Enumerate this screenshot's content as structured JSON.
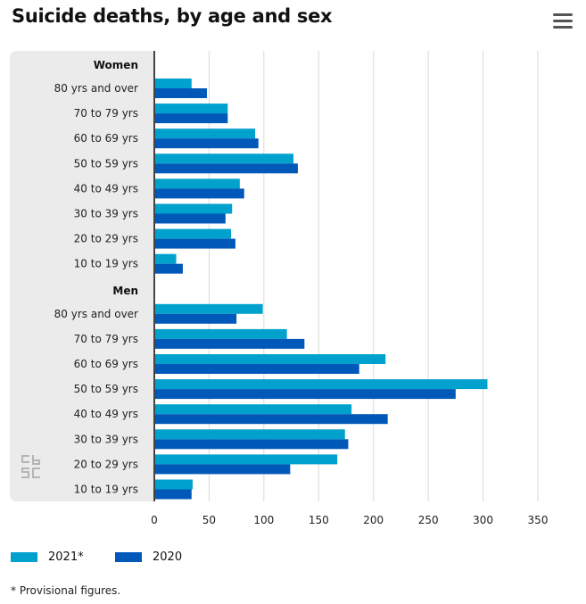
{
  "header": {
    "title": "Suicide deaths, by age and sex",
    "menu_icon": "hamburger-menu-icon"
  },
  "chart_data": {
    "type": "bar",
    "orientation": "horizontal",
    "title": "Suicide deaths, by age and sex",
    "groups": [
      {
        "label": "Women",
        "categories": [
          "80 yrs and over",
          "70 to 79 yrs",
          "60 to 69 yrs",
          "50 to 59 yrs",
          "40 to 49 yrs",
          "30 to 39 yrs",
          "20 to 29 yrs",
          "10 to 19 yrs"
        ],
        "series": [
          {
            "name": "2021*",
            "values": [
              34,
              67,
              92,
              127,
              78,
              71,
              70,
              20
            ]
          },
          {
            "name": "2020",
            "values": [
              48,
              67,
              95,
              131,
              82,
              65,
              74,
              26
            ]
          }
        ]
      },
      {
        "label": "Men",
        "categories": [
          "80 yrs and over",
          "70 to 79 yrs",
          "60 to 69 yrs",
          "50 to 59 yrs",
          "40 to 49 yrs",
          "30 to 39 yrs",
          "20 to 29 yrs",
          "10 to 19 yrs"
        ],
        "series": [
          {
            "name": "2021*",
            "values": [
              99,
              121,
              211,
              304,
              180,
              174,
              167,
              35
            ]
          },
          {
            "name": "2020",
            "values": [
              75,
              137,
              187,
              275,
              213,
              177,
              124,
              34
            ]
          }
        ]
      }
    ],
    "xlim": [
      0,
      350
    ],
    "xticks": [
      "0",
      "50",
      "100",
      "150",
      "200",
      "250",
      "300",
      "350"
    ],
    "grid": true,
    "legend_position": "bottom-left",
    "colors": {
      "2021*": "#00a1cd",
      "2020": "#0058b8"
    }
  },
  "legend": {
    "items": [
      {
        "label": "2021*",
        "color": "#00a1cd"
      },
      {
        "label": "2020",
        "color": "#0058b8"
      }
    ]
  },
  "footnote": "* Provisional figures.",
  "logo": {
    "icon": "cbs-logo-icon",
    "text": "cbs"
  }
}
